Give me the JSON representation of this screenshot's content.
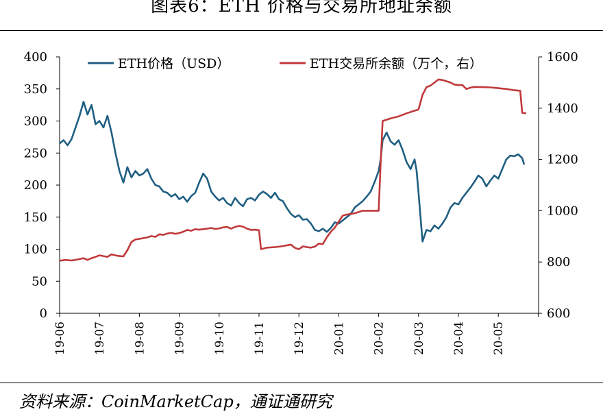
{
  "title": "图表6：ETH 价格与交易所地址余额",
  "source": "资料来源：CoinMarketCap，通证通研究",
  "colors": {
    "price": "#1f5f82",
    "balance": "#c0393b",
    "axis": "#000000"
  },
  "chart_data": {
    "type": "line",
    "title": "",
    "xlabel": "",
    "ylabel_left": "",
    "ylabel_right": "",
    "x_ticks": [
      "19-06",
      "19-07",
      "19-08",
      "19-09",
      "19-10",
      "19-11",
      "19-12",
      "20-01",
      "20-02",
      "20-03",
      "20-04",
      "20-05"
    ],
    "y_left": {
      "min": 0,
      "max": 400,
      "ticks": [
        0,
        50,
        100,
        150,
        200,
        250,
        300,
        350,
        400
      ]
    },
    "y_right": {
      "min": 600,
      "max": 1600,
      "ticks": [
        600,
        800,
        1000,
        1200,
        1400,
        1600
      ]
    },
    "legend_position": "top",
    "series": [
      {
        "name": "ETH价格（USD）",
        "axis": "left",
        "color": "#1f5f82",
        "points": [
          [
            0.0,
            265
          ],
          [
            0.1,
            270
          ],
          [
            0.2,
            262
          ],
          [
            0.3,
            272
          ],
          [
            0.4,
            290
          ],
          [
            0.5,
            308
          ],
          [
            0.6,
            330
          ],
          [
            0.7,
            310
          ],
          [
            0.8,
            325
          ],
          [
            0.9,
            295
          ],
          [
            1.0,
            300
          ],
          [
            1.1,
            290
          ],
          [
            1.2,
            308
          ],
          [
            1.3,
            282
          ],
          [
            1.4,
            250
          ],
          [
            1.5,
            222
          ],
          [
            1.6,
            204
          ],
          [
            1.7,
            228
          ],
          [
            1.8,
            212
          ],
          [
            1.9,
            222
          ],
          [
            2.0,
            215
          ],
          [
            2.1,
            218
          ],
          [
            2.2,
            225
          ],
          [
            2.3,
            210
          ],
          [
            2.4,
            200
          ],
          [
            2.5,
            198
          ],
          [
            2.6,
            190
          ],
          [
            2.7,
            188
          ],
          [
            2.8,
            182
          ],
          [
            2.9,
            186
          ],
          [
            3.0,
            178
          ],
          [
            3.1,
            182
          ],
          [
            3.2,
            174
          ],
          [
            3.3,
            183
          ],
          [
            3.4,
            188
          ],
          [
            3.5,
            204
          ],
          [
            3.6,
            218
          ],
          [
            3.7,
            210
          ],
          [
            3.8,
            190
          ],
          [
            3.9,
            182
          ],
          [
            4.0,
            176
          ],
          [
            4.1,
            180
          ],
          [
            4.2,
            172
          ],
          [
            4.3,
            168
          ],
          [
            4.4,
            180
          ],
          [
            4.5,
            172
          ],
          [
            4.6,
            167
          ],
          [
            4.7,
            178
          ],
          [
            4.8,
            180
          ],
          [
            4.9,
            176
          ],
          [
            5.0,
            185
          ],
          [
            5.1,
            190
          ],
          [
            5.2,
            186
          ],
          [
            5.3,
            180
          ],
          [
            5.4,
            188
          ],
          [
            5.5,
            178
          ],
          [
            5.6,
            175
          ],
          [
            5.7,
            164
          ],
          [
            5.8,
            155
          ],
          [
            5.9,
            150
          ],
          [
            6.0,
            153
          ],
          [
            6.1,
            146
          ],
          [
            6.2,
            147
          ],
          [
            6.3,
            140
          ],
          [
            6.4,
            130
          ],
          [
            6.5,
            128
          ],
          [
            6.6,
            132
          ],
          [
            6.7,
            127
          ],
          [
            6.8,
            133
          ],
          [
            6.9,
            142
          ],
          [
            7.0,
            140
          ],
          [
            7.1,
            145
          ],
          [
            7.2,
            150
          ],
          [
            7.3,
            155
          ],
          [
            7.4,
            165
          ],
          [
            7.5,
            170
          ],
          [
            7.6,
            175
          ],
          [
            7.7,
            182
          ],
          [
            7.8,
            190
          ],
          [
            7.9,
            205
          ],
          [
            8.0,
            222
          ],
          [
            8.05,
            240
          ],
          [
            8.1,
            270
          ],
          [
            8.2,
            282
          ],
          [
            8.3,
            268
          ],
          [
            8.4,
            263
          ],
          [
            8.5,
            270
          ],
          [
            8.6,
            255
          ],
          [
            8.7,
            236
          ],
          [
            8.8,
            225
          ],
          [
            8.9,
            240
          ],
          [
            8.95,
            223
          ],
          [
            9.0,
            188
          ],
          [
            9.05,
            150
          ],
          [
            9.1,
            112
          ],
          [
            9.2,
            130
          ],
          [
            9.3,
            128
          ],
          [
            9.4,
            137
          ],
          [
            9.5,
            132
          ],
          [
            9.6,
            140
          ],
          [
            9.7,
            150
          ],
          [
            9.8,
            165
          ],
          [
            9.9,
            172
          ],
          [
            10.0,
            170
          ],
          [
            10.1,
            180
          ],
          [
            10.2,
            188
          ],
          [
            10.3,
            196
          ],
          [
            10.4,
            205
          ],
          [
            10.5,
            215
          ],
          [
            10.6,
            210
          ],
          [
            10.7,
            198
          ],
          [
            10.8,
            207
          ],
          [
            10.9,
            215
          ],
          [
            11.0,
            210
          ],
          [
            11.1,
            225
          ],
          [
            11.2,
            240
          ],
          [
            11.3,
            246
          ],
          [
            11.4,
            245
          ],
          [
            11.5,
            248
          ],
          [
            11.6,
            242
          ],
          [
            11.65,
            232
          ]
        ]
      },
      {
        "name": "ETH交易所余额（万个，右）",
        "axis": "right",
        "color": "#c0393b",
        "points": [
          [
            0.0,
            805
          ],
          [
            0.15,
            808
          ],
          [
            0.3,
            806
          ],
          [
            0.45,
            810
          ],
          [
            0.6,
            815
          ],
          [
            0.7,
            808
          ],
          [
            0.8,
            815
          ],
          [
            0.9,
            820
          ],
          [
            1.0,
            826
          ],
          [
            1.1,
            823
          ],
          [
            1.2,
            820
          ],
          [
            1.3,
            830
          ],
          [
            1.4,
            826
          ],
          [
            1.5,
            823
          ],
          [
            1.6,
            822
          ],
          [
            1.7,
            846
          ],
          [
            1.8,
            878
          ],
          [
            1.9,
            888
          ],
          [
            2.0,
            890
          ],
          [
            2.1,
            893
          ],
          [
            2.2,
            896
          ],
          [
            2.3,
            901
          ],
          [
            2.4,
            898
          ],
          [
            2.5,
            908
          ],
          [
            2.6,
            906
          ],
          [
            2.7,
            911
          ],
          [
            2.8,
            914
          ],
          [
            2.9,
            910
          ],
          [
            3.0,
            913
          ],
          [
            3.1,
            918
          ],
          [
            3.2,
            925
          ],
          [
            3.3,
            922
          ],
          [
            3.4,
            928
          ],
          [
            3.5,
            926
          ],
          [
            3.6,
            928
          ],
          [
            3.7,
            930
          ],
          [
            3.8,
            933
          ],
          [
            3.9,
            929
          ],
          [
            4.0,
            931
          ],
          [
            4.1,
            935
          ],
          [
            4.2,
            937
          ],
          [
            4.3,
            930
          ],
          [
            4.4,
            937
          ],
          [
            4.5,
            941
          ],
          [
            4.6,
            938
          ],
          [
            4.7,
            930
          ],
          [
            4.8,
            925
          ],
          [
            4.9,
            926
          ],
          [
            5.0,
            924
          ],
          [
            5.05,
            850
          ],
          [
            5.2,
            856
          ],
          [
            5.4,
            858
          ],
          [
            5.6,
            862
          ],
          [
            5.8,
            868
          ],
          [
            5.9,
            855
          ],
          [
            6.0,
            850
          ],
          [
            6.1,
            861
          ],
          [
            6.2,
            858
          ],
          [
            6.3,
            856
          ],
          [
            6.4,
            860
          ],
          [
            6.5,
            872
          ],
          [
            6.6,
            870
          ],
          [
            6.7,
            896
          ],
          [
            6.8,
            918
          ],
          [
            6.9,
            934
          ],
          [
            7.0,
            958
          ],
          [
            7.1,
            981
          ],
          [
            7.2,
            985
          ],
          [
            7.4,
            990
          ],
          [
            7.6,
            1000
          ],
          [
            7.8,
            1000
          ],
          [
            8.0,
            1000
          ],
          [
            8.05,
            1185
          ],
          [
            8.1,
            1350
          ],
          [
            8.3,
            1360
          ],
          [
            8.5,
            1368
          ],
          [
            8.7,
            1380
          ],
          [
            8.9,
            1390
          ],
          [
            9.0,
            1395
          ],
          [
            9.1,
            1452
          ],
          [
            9.2,
            1482
          ],
          [
            9.3,
            1488
          ],
          [
            9.4,
            1500
          ],
          [
            9.5,
            1512
          ],
          [
            9.6,
            1510
          ],
          [
            9.7,
            1505
          ],
          [
            9.8,
            1500
          ],
          [
            9.9,
            1492
          ],
          [
            10.0,
            1490
          ],
          [
            10.1,
            1490
          ],
          [
            10.2,
            1475
          ],
          [
            10.3,
            1480
          ],
          [
            10.4,
            1483
          ],
          [
            10.6,
            1482
          ],
          [
            10.8,
            1481
          ],
          [
            11.0,
            1478
          ],
          [
            11.2,
            1475
          ],
          [
            11.4,
            1470
          ],
          [
            11.55,
            1468
          ],
          [
            11.6,
            1382
          ],
          [
            11.7,
            1380
          ]
        ]
      }
    ]
  }
}
